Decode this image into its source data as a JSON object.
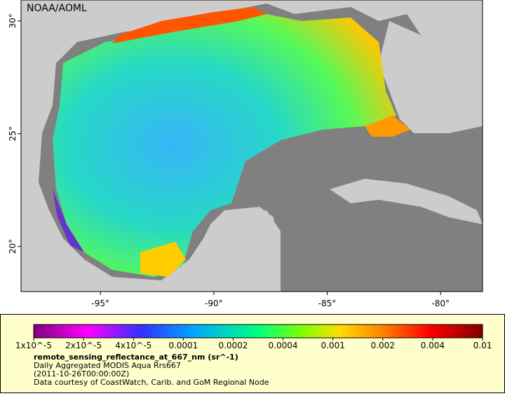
{
  "map": {
    "credit": "NOAA/AOML",
    "lon_range": [
      -98.5,
      -78.15
    ],
    "lat_range": [
      18,
      30.93
    ],
    "lon_ticks": [
      {
        "value": -95,
        "label": "-95°"
      },
      {
        "value": -90,
        "label": "-90°"
      },
      {
        "value": -85,
        "label": "-85°"
      },
      {
        "value": -80,
        "label": "-80°"
      }
    ],
    "lat_ticks": [
      {
        "value": 20,
        "label": "20°"
      },
      {
        "value": 25,
        "label": "25°"
      },
      {
        "value": 30,
        "label": "30°"
      }
    ]
  },
  "colorbar": {
    "labels": [
      "1x10^-5",
      "2x10^-5",
      "4x10^-5",
      "0.0001",
      "0.0002",
      "0.0004",
      "0.001",
      "0.002",
      "0.004",
      "0.01"
    ],
    "title": "remote_sensing_reflectance_at_667_nm (sr^-1)",
    "lines": [
      "Daily Aggregated MODIS Aqua Rrs667",
      "(2011-10-26T00:00:00Z)",
      "Data courtesy of CoastWatch, Carib. and GoM Regional Node"
    ]
  }
}
